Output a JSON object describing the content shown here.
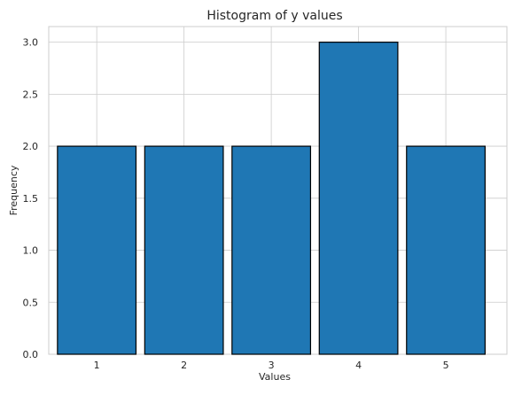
{
  "chart_data": {
    "type": "bar",
    "title": "Histogram of y values",
    "xlabel": "Values",
    "ylabel": "Frequency",
    "categories": [
      "1",
      "2",
      "3",
      "4",
      "5"
    ],
    "values": [
      2,
      2,
      2,
      3,
      2
    ],
    "ylim": [
      0,
      3.15
    ],
    "yticks": [
      "0.0",
      "0.5",
      "1.0",
      "1.5",
      "2.0",
      "2.5",
      "3.0"
    ],
    "grid": true,
    "bar_color": "#1f77b4",
    "edge_color": "#000000"
  }
}
